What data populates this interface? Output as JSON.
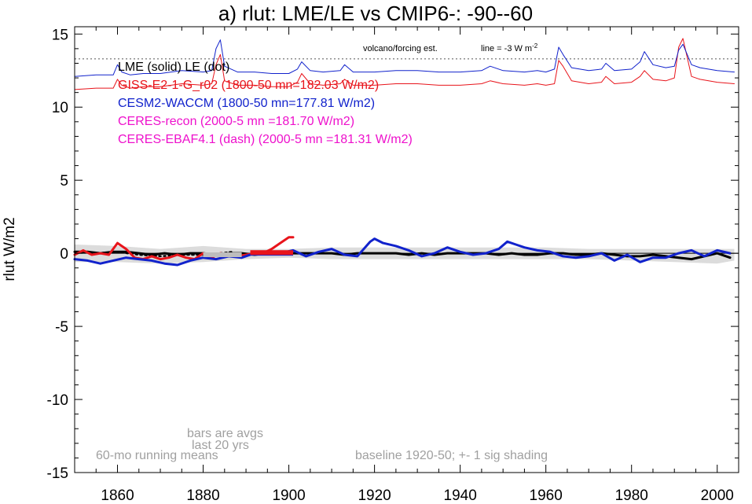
{
  "chart_data": {
    "type": "line",
    "title": "a) rlut: LME/LE vs CMIP6-: -90--60",
    "ylabel": "rlut W/m2",
    "xlabel": "",
    "xlim": [
      1850,
      2005
    ],
    "ylim": [
      -15,
      15.5
    ],
    "xticks": [
      1860,
      1880,
      1900,
      1920,
      1940,
      1960,
      1980,
      2000
    ],
    "xtick_labels": [
      "1860",
      "1880",
      "1900",
      "1920",
      "1940",
      "1960",
      "1980",
      "2000"
    ],
    "yticks": [
      -15,
      -10,
      -5,
      0,
      5,
      10,
      15
    ],
    "ytick_labels": [
      "-15",
      "-10",
      "-5",
      "0",
      "5",
      "10",
      "15"
    ],
    "grid": false,
    "legend": {
      "placement": "top-left",
      "entries": [
        {
          "text": "LME (solid)   LE (dot)",
          "color": "#000000"
        },
        {
          "text": "GISS-E2-1-G_r02 (1800-50 mn=182.03 W/m2)",
          "color": "#e8141b"
        },
        {
          "text": "CESM2-WACCM (1800-50 mn=177.81 W/m2)",
          "color": "#1122cc"
        },
        {
          "text": "CERES-recon (2000-5 mn =181.70 W/m2)",
          "color": "#ee11cc"
        },
        {
          "text": "CERES-EBAF4.1 (dash) (2000-5 mn =181.31 W/m2)",
          "color": "#ee11cc"
        }
      ]
    },
    "annotations": {
      "volcano_label": "volcano/forcing est.",
      "line_label": "line = -3 W m",
      "line_label_sup": "-2",
      "bars_note_1": "bars are avgs",
      "bars_note_2": "last 20 yrs",
      "running_mean": "60-mo running means",
      "baseline": "baseline 1920-50; +- 1 sig shading"
    },
    "reference_line_y": 13.3,
    "shading": {
      "x": [
        1850,
        1860,
        1870,
        1880,
        1890,
        1900,
        1910,
        1920,
        1930,
        1940,
        1950,
        1960,
        1970,
        1980,
        1990,
        2000,
        2004
      ],
      "upper": [
        0.6,
        0.5,
        0.3,
        0.5,
        0.3,
        0.3,
        0.4,
        0.4,
        0.4,
        0.4,
        0.4,
        0.4,
        0.3,
        0.3,
        0.3,
        0.3,
        0.3
      ],
      "lower": [
        -0.6,
        -0.6,
        -0.7,
        -0.6,
        -0.4,
        -0.3,
        -0.4,
        -0.4,
        -0.4,
        -0.4,
        -0.4,
        -0.4,
        -0.4,
        -0.5,
        -0.6,
        -0.7,
        -0.5
      ]
    },
    "series": [
      {
        "name": "GISS-E2-1-G_r02 forcing",
        "color": "#e8141b",
        "width": 1,
        "x": [
          1850,
          1855,
          1859,
          1860,
          1861,
          1863,
          1866,
          1870,
          1875,
          1880,
          1882,
          1883,
          1884,
          1885,
          1888,
          1892,
          1896,
          1900,
          1902,
          1903,
          1905,
          1908,
          1912,
          1913,
          1915,
          1920,
          1925,
          1930,
          1935,
          1940,
          1945,
          1947,
          1950,
          1955,
          1958,
          1960,
          1962,
          1963,
          1964,
          1966,
          1970,
          1973,
          1974,
          1976,
          1980,
          1982,
          1983,
          1985,
          1988,
          1990,
          1991,
          1992,
          1994,
          1996,
          2000,
          2004
        ],
        "y": [
          11.2,
          11.3,
          11.3,
          11.9,
          11.5,
          11.3,
          11.4,
          11.4,
          11.6,
          11.5,
          11.6,
          12.9,
          13.6,
          11.8,
          11.5,
          11.5,
          11.4,
          11.4,
          11.7,
          12.3,
          11.6,
          11.5,
          11.6,
          11.9,
          11.5,
          11.5,
          11.6,
          11.6,
          11.5,
          11.5,
          11.6,
          11.8,
          11.6,
          11.5,
          11.6,
          11.5,
          11.6,
          13.2,
          12.8,
          11.8,
          11.6,
          11.7,
          12.1,
          11.6,
          11.7,
          12.1,
          12.5,
          11.9,
          11.8,
          12.0,
          14.1,
          14.7,
          12.1,
          11.9,
          11.7,
          11.6
        ]
      },
      {
        "name": "CESM2-WACCM forcing",
        "color": "#1122cc",
        "width": 1,
        "x": [
          1850,
          1855,
          1859,
          1860,
          1861,
          1863,
          1866,
          1870,
          1875,
          1880,
          1882,
          1883,
          1884,
          1885,
          1888,
          1892,
          1896,
          1900,
          1902,
          1903,
          1905,
          1908,
          1912,
          1913,
          1915,
          1920,
          1925,
          1930,
          1935,
          1940,
          1945,
          1947,
          1950,
          1955,
          1958,
          1960,
          1962,
          1963,
          1964,
          1966,
          1970,
          1973,
          1974,
          1976,
          1980,
          1982,
          1983,
          1985,
          1988,
          1990,
          1991,
          1992,
          1994,
          1996,
          2000,
          2004
        ],
        "y": [
          12.1,
          12.2,
          12.2,
          12.9,
          12.4,
          12.2,
          12.3,
          12.3,
          12.5,
          12.4,
          12.5,
          14.0,
          14.6,
          12.8,
          12.4,
          12.4,
          12.3,
          12.3,
          12.6,
          13.1,
          12.5,
          12.4,
          12.5,
          12.9,
          12.4,
          12.4,
          12.5,
          12.5,
          12.4,
          12.4,
          12.5,
          12.8,
          12.5,
          12.4,
          12.5,
          12.4,
          12.6,
          14.1,
          13.6,
          12.7,
          12.5,
          12.6,
          13.0,
          12.5,
          12.6,
          13.1,
          13.8,
          12.9,
          12.7,
          12.8,
          13.9,
          14.3,
          12.9,
          12.7,
          12.5,
          12.4
        ]
      },
      {
        "name": "LME",
        "color": "#000000",
        "width": 3,
        "x": [
          1850,
          1853,
          1856,
          1859,
          1862,
          1865,
          1868,
          1871,
          1874,
          1877,
          1880,
          1883,
          1886,
          1889,
          1892,
          1895,
          1898,
          1901,
          1904,
          1907,
          1910,
          1913,
          1916,
          1919,
          1922,
          1925,
          1928,
          1931,
          1934,
          1937,
          1940,
          1943,
          1946,
          1949,
          1952,
          1955,
          1958,
          1961,
          1964,
          1967,
          1970,
          1973,
          1976,
          1979,
          1982,
          1985,
          1988,
          1991,
          1994,
          1997,
          2000,
          2003
        ],
        "y": [
          0.1,
          0.1,
          0.0,
          0.1,
          0.1,
          0.0,
          -0.1,
          0.0,
          -0.1,
          0.0,
          0.0,
          -0.1,
          0.0,
          0.0,
          -0.1,
          0.0,
          0.0,
          0.0,
          0.0,
          0.0,
          0.0,
          -0.1,
          0.0,
          0.0,
          0.0,
          0.0,
          -0.1,
          0.0,
          -0.1,
          0.0,
          0.0,
          0.0,
          0.0,
          -0.1,
          0.0,
          -0.1,
          -0.1,
          0.0,
          0.0,
          -0.1,
          -0.1,
          0.0,
          -0.1,
          -0.2,
          -0.2,
          -0.1,
          -0.2,
          -0.3,
          -0.4,
          -0.2,
          0.0,
          -0.3
        ]
      },
      {
        "name": "LE",
        "color": "#000000",
        "width": 2.5,
        "dash": "2,4",
        "x": [
          1850,
          1855,
          1860,
          1865,
          1870,
          1875,
          1880,
          1884,
          1887
        ],
        "y": [
          0.1,
          0.0,
          0.1,
          -0.1,
          -0.2,
          -0.1,
          -0.1,
          0.0,
          0.1
        ]
      },
      {
        "name": "GISS-E2-1-G_r02",
        "color": "#e8141b",
        "width": 3,
        "x": [
          1850,
          1852,
          1854,
          1856,
          1858,
          1860,
          1862,
          1864,
          1866,
          1868,
          1870,
          1872,
          1874,
          1876,
          1878,
          1880,
          1882,
          1884,
          1886,
          1888,
          1890,
          1892,
          1894,
          1896,
          1898,
          1900,
          1901
        ],
        "y": [
          -0.1,
          0.2,
          -0.1,
          0.0,
          -0.1,
          0.7,
          0.3,
          -0.3,
          -0.4,
          -0.2,
          -0.4,
          -0.3,
          -0.1,
          -0.3,
          -0.4,
          0.0,
          -0.3,
          0.0,
          -0.1,
          -0.2,
          -0.1,
          0.0,
          0.0,
          0.3,
          0.7,
          1.1,
          1.1
        ]
      },
      {
        "name": "CESM2-WACCM",
        "color": "#1122cc",
        "width": 3,
        "x": [
          1850,
          1853,
          1856,
          1859,
          1862,
          1865,
          1868,
          1871,
          1874,
          1877,
          1880,
          1883,
          1886,
          1889,
          1892,
          1895,
          1898,
          1901,
          1904,
          1907,
          1910,
          1913,
          1916,
          1919,
          1920,
          1922,
          1925,
          1928,
          1931,
          1934,
          1937,
          1940,
          1943,
          1946,
          1949,
          1951,
          1953,
          1955,
          1958,
          1961,
          1964,
          1967,
          1970,
          1973,
          1976,
          1979,
          1982,
          1985,
          1988,
          1991,
          1994,
          1997,
          2000,
          2003
        ],
        "y": [
          -0.4,
          -0.5,
          -0.7,
          -0.5,
          -0.3,
          -0.4,
          -0.5,
          -0.7,
          -0.8,
          -0.5,
          -0.3,
          -0.4,
          -0.2,
          -0.3,
          0.0,
          0.1,
          0.0,
          0.2,
          -0.2,
          0.1,
          0.3,
          -0.1,
          -0.2,
          0.8,
          1.0,
          0.7,
          0.5,
          0.2,
          -0.2,
          0.0,
          0.4,
          0.1,
          -0.1,
          0.0,
          0.3,
          0.8,
          0.6,
          0.4,
          0.2,
          0.1,
          -0.2,
          -0.3,
          -0.2,
          0.0,
          -0.5,
          -0.1,
          -0.6,
          -0.3,
          -0.3,
          0.0,
          0.2,
          -0.2,
          0.2,
          0.0
        ]
      }
    ],
    "bars": [
      {
        "name": "LME avg",
        "color": "#bdbdbd",
        "x": [
          1880,
          1889
        ],
        "y": -0.1
      },
      {
        "name": "CESM2-WACCM avg",
        "color": "#1122cc",
        "x": [
          1891,
          1901
        ],
        "y": 0.0
      },
      {
        "name": "GISS avg",
        "color": "#e8141b",
        "x": [
          1891,
          1901
        ],
        "y": 0.05
      }
    ]
  }
}
